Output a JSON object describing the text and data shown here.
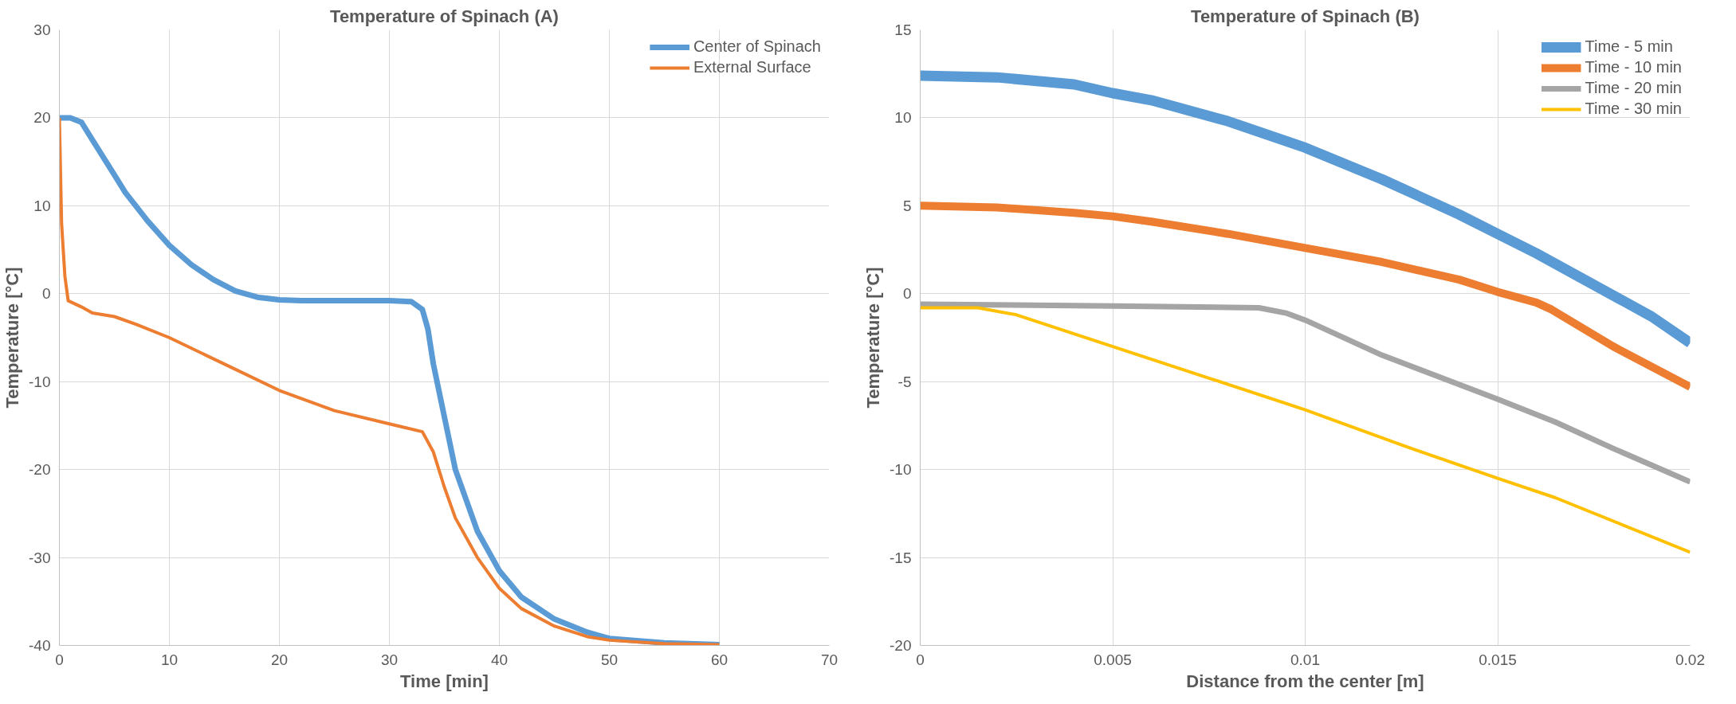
{
  "chart_data": [
    {
      "type": "line",
      "title": "Temperature of Spinach (A)",
      "xlabel": "Time [min]",
      "ylabel": "Temperature [°C]",
      "xlim": [
        0,
        70
      ],
      "xticks": [
        0,
        10,
        20,
        30,
        40,
        50,
        60,
        70
      ],
      "ylim": [
        -40,
        30
      ],
      "yticks": [
        -40,
        -30,
        -20,
        -10,
        0,
        10,
        20,
        30
      ],
      "grid": true,
      "legend": "top right",
      "line_style": "solid",
      "marker": "none",
      "series": [
        {
          "name": "Center of Spinach",
          "color": "#5b9bd5",
          "x": [
            0,
            1,
            2,
            3,
            4,
            5,
            6,
            8,
            10,
            12,
            14,
            16,
            18,
            20,
            22,
            25,
            30,
            32,
            33,
            33.5,
            34,
            35,
            36,
            38,
            40,
            42,
            45,
            48,
            50,
            55,
            60
          ],
          "values": [
            20,
            20,
            19.5,
            17.5,
            15.5,
            13.5,
            11.5,
            8.3,
            5.5,
            3.3,
            1.6,
            0.3,
            -0.4,
            -0.7,
            -0.8,
            -0.8,
            -0.8,
            -0.9,
            -1.8,
            -4,
            -8,
            -14,
            -20,
            -27,
            -31.5,
            -34.5,
            -37,
            -38.5,
            -39.2,
            -39.7,
            -39.9
          ]
        },
        {
          "name": "External Surface",
          "color": "#ed7d31",
          "x": [
            0,
            0.2,
            0.5,
            0.8,
            2,
            3,
            5,
            7,
            10,
            15,
            20,
            25,
            30,
            33,
            34,
            35,
            36,
            38,
            40,
            42,
            45,
            48,
            50,
            55,
            60
          ],
          "values": [
            20,
            8,
            2,
            -0.8,
            -1.5,
            -2.2,
            -2.6,
            -3.5,
            -5,
            -8,
            -11,
            -13.3,
            -14.8,
            -15.7,
            -18,
            -22,
            -25.5,
            -30,
            -33.5,
            -35.8,
            -37.8,
            -39,
            -39.4,
            -39.8,
            -39.9
          ]
        }
      ]
    },
    {
      "type": "line",
      "title": "Temperature of Spinach (B)",
      "xlabel": "Distance from the center [m]",
      "ylabel": "Temperature [°C]",
      "xlim": [
        0,
        0.02
      ],
      "xticks": [
        0,
        0.005,
        0.01,
        0.015,
        0.02
      ],
      "ylim": [
        -20,
        15
      ],
      "yticks": [
        -20,
        -15,
        -10,
        -5,
        0,
        5,
        10,
        15
      ],
      "grid": true,
      "legend": "top right",
      "line_style": "solid",
      "marker": "none",
      "series": [
        {
          "name": "Time - 5 min",
          "color": "#5b9bd5",
          "x": [
            0,
            0.002,
            0.004,
            0.005,
            0.006,
            0.008,
            0.01,
            0.012,
            0.014,
            0.015,
            0.016,
            0.017,
            0.018,
            0.019,
            0.02
          ],
          "values": [
            12.4,
            12.3,
            11.9,
            11.4,
            11,
            9.8,
            8.3,
            6.5,
            4.5,
            3.4,
            2.3,
            1.1,
            -0.1,
            -1.3,
            -2.8
          ]
        },
        {
          "name": "Time - 10 min",
          "color": "#ed7d31",
          "x": [
            0,
            0.002,
            0.004,
            0.005,
            0.006,
            0.008,
            0.01,
            0.012,
            0.014,
            0.015,
            0.016,
            0.0164,
            0.018,
            0.02
          ],
          "values": [
            5,
            4.9,
            4.6,
            4.4,
            4.1,
            3.4,
            2.6,
            1.8,
            0.8,
            0.1,
            -0.5,
            -0.9,
            -3,
            -5.3
          ]
        },
        {
          "name": "Time - 20 min",
          "color": "#a5a5a5",
          "x": [
            0,
            0.005,
            0.0088,
            0.0095,
            0.01,
            0.012,
            0.015,
            0.0165,
            0.018,
            0.02
          ],
          "values": [
            -0.6,
            -0.7,
            -0.8,
            -1.1,
            -1.5,
            -3.5,
            -6,
            -7.3,
            -8.8,
            -10.7
          ]
        },
        {
          "name": "Time - 30 min",
          "color": "#ffc000",
          "x": [
            0,
            0.0015,
            0.0025,
            0.005,
            0.0075,
            0.01,
            0.0125,
            0.015,
            0.0165,
            0.02
          ],
          "values": [
            -0.8,
            -0.8,
            -1.2,
            -3,
            -4.8,
            -6.6,
            -8.6,
            -10.5,
            -11.6,
            -14.7
          ]
        }
      ]
    }
  ]
}
